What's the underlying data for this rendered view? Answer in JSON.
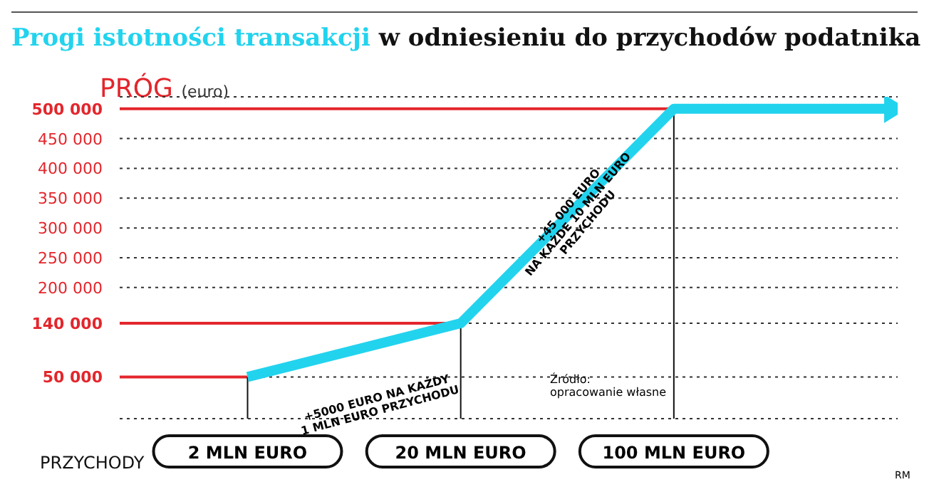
{
  "chart_data": {
    "type": "line",
    "title": "Progi istotności transakcji",
    "subtitle": "w odniesieniu do przychodów podatnika",
    "ylabel": "PRÓG (euro)",
    "xlabel": "PRZYCHODY",
    "categories": [
      "2 MLN EURO",
      "20 MLN EURO",
      "100 MLN EURO",
      null
    ],
    "series": [
      {
        "color": "#22d3ee",
        "values": [
          50000,
          140000,
          500000,
          500000
        ]
      }
    ],
    "ylim": [
      -20000,
      520000
    ],
    "yticks": [
      {
        "value": 50000,
        "label": "50 000"
      },
      {
        "value": 140000,
        "label": "140 000"
      },
      {
        "value": 200000,
        "label": "200 000"
      },
      {
        "value": 250000,
        "label": "250 000"
      },
      {
        "value": 300000,
        "label": "300 000"
      },
      {
        "value": 350000,
        "label": "350 000"
      },
      {
        "value": 400000,
        "label": "400 000"
      },
      {
        "value": 450000,
        "label": "450 000"
      },
      {
        "value": 500000,
        "label": "500 000"
      }
    ],
    "ref_lines": [
      {
        "axis": "y",
        "value": 500000,
        "color": "#e3262c"
      },
      {
        "axis": "y",
        "value": 140000,
        "color": "#e3262c"
      },
      {
        "axis": "y",
        "value": 50000,
        "color": "#e3262c"
      },
      {
        "axis": "x",
        "value": "2 MLN EURO",
        "color": "#111111"
      },
      {
        "axis": "x",
        "value": "20 MLN EURO",
        "color": "#111111"
      },
      {
        "axis": "x",
        "value": "100 MLN EURO",
        "color": "#111111"
      }
    ],
    "grid": "y",
    "line_style": "solid",
    "marker": "none",
    "legend": false,
    "annotations": [
      {
        "text": "+5000 EURO NA KAŻDY\n1 MLN EURO PRZYCHODU",
        "y": 95000
      },
      {
        "text": "+45 000 EURO\nNA KAŻDE 10 MLN EURO\nPRZYCHODU",
        "y": 320000
      },
      "Źródło:\nopracowanie własne",
      "RM"
    ]
  }
}
